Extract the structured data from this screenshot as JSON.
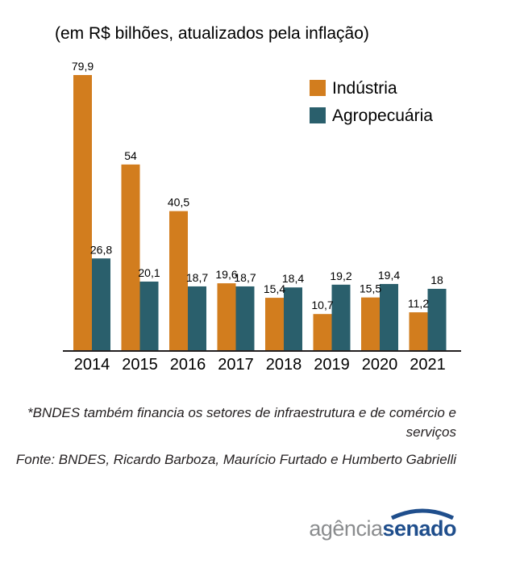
{
  "chart_data": {
    "type": "bar",
    "subtitle": "(em R$ bilhões, atualizados pela inflação)",
    "categories": [
      "2014",
      "2015",
      "2016",
      "2017",
      "2018",
      "2019",
      "2020",
      "2021"
    ],
    "series": [
      {
        "name": "Indústria",
        "color": "#d27d1e",
        "values": [
          79.9,
          54,
          40.5,
          19.6,
          15.4,
          10.7,
          15.5,
          11.2
        ],
        "labels": [
          "79,9",
          "54",
          "40,5",
          "19,6",
          "15,4",
          "10,7",
          "15,5",
          "11,2"
        ]
      },
      {
        "name": "Agropecuária",
        "color": "#2a5f6c",
        "values": [
          26.8,
          20.1,
          18.7,
          18.7,
          18.4,
          19.2,
          19.4,
          18
        ],
        "labels": [
          "26,8",
          "20,1",
          "18,7",
          "18,7",
          "18,4",
          "19,2",
          "19,4",
          "18"
        ]
      }
    ],
    "ylim": [
      0,
      80
    ],
    "grid": false,
    "legend": "top-right"
  },
  "notes": {
    "footnote": "*BNDES também financia os setores de infraestrutura e de comércio e serviços",
    "source": "Fonte: BNDES, Ricardo Barboza, Maurício Furtado e Humberto Gabrielli"
  },
  "logo": {
    "part1": "agência",
    "part2": "senado"
  }
}
